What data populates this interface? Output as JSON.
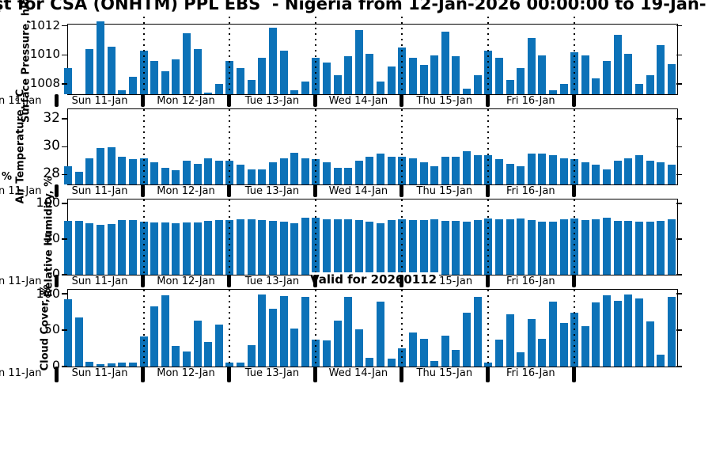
{
  "title": {
    "text": "şt for CSA (ONHTM) PPL EBS  - Nigeria from 12-Jan-2026 00:00:00 to 19-Jan-"
  },
  "valid_label": "Valid for 20260112",
  "stray_percent_glyph": "%",
  "colors": {
    "bar": "#0c72b8",
    "axis": "#000000",
    "background": "#ffffff",
    "text": "#000000"
  },
  "x_axis": {
    "day_labels": [
      "Sun 11-Jan",
      "Mon 12-Jan",
      "Tue 13-Jan",
      "Wed 14-Jan",
      "Thu 15-Jan",
      "Fri 16-Jan"
    ],
    "clipped_left_label": "Sun 11-Jan",
    "x_start": "Sun 11-Jan 03:00",
    "x_step_hours": 3
  },
  "chart_data": [
    {
      "type": "bar",
      "name": "surface-pressure",
      "ylabel": "Surface Pressure, hPa",
      "yticks": [
        1008,
        1010,
        1012
      ],
      "ylim": [
        1007.3,
        1012.1
      ],
      "legend_position": "none",
      "grid": "vertical-dotted-day-boundaries",
      "values": [
        1009.1,
        1007.3,
        1010.4,
        1012.3,
        1010.6,
        1007.6,
        1008.5,
        1010.3,
        1009.6,
        1008.9,
        1009.7,
        1011.5,
        1010.4,
        1007.4,
        1008.0,
        1009.6,
        1009.1,
        1008.3,
        1009.8,
        1011.9,
        1010.3,
        1007.6,
        1008.2,
        1009.8,
        1009.5,
        1008.6,
        1009.9,
        1011.7,
        1010.1,
        1008.2,
        1009.2,
        1010.5,
        1009.8,
        1009.3,
        1010.0,
        1011.6,
        1009.9,
        1007.7,
        1008.6,
        1010.3,
        1009.8,
        1008.3,
        1009.1,
        1011.2,
        1010.0,
        1007.6,
        1008.0,
        1010.2,
        1010.0,
        1008.4,
        1009.6,
        1011.4,
        1010.1,
        1008.0,
        1008.6,
        1010.7,
        1009.4
      ]
    },
    {
      "type": "bar",
      "name": "air-temperature",
      "ylabel": "Air Temperature, °C",
      "yticks": [
        28,
        30,
        32
      ],
      "ylim": [
        27.3,
        32.7
      ],
      "legend_position": "none",
      "grid": "vertical-dotted-day-boundaries",
      "values": [
        28.6,
        28.2,
        29.2,
        29.9,
        30.0,
        29.3,
        29.1,
        29.2,
        28.9,
        28.5,
        28.3,
        29.0,
        28.8,
        29.2,
        29.0,
        29.0,
        28.7,
        28.4,
        28.4,
        28.9,
        29.2,
        29.6,
        29.2,
        29.1,
        28.9,
        28.5,
        28.5,
        29.0,
        29.3,
        29.5,
        29.3,
        29.3,
        29.2,
        28.9,
        28.6,
        29.3,
        29.3,
        29.7,
        29.4,
        29.4,
        29.1,
        28.8,
        28.6,
        29.5,
        29.5,
        29.4,
        29.2,
        29.1,
        28.9,
        28.7,
        28.4,
        29.0,
        29.2,
        29.4,
        29.0,
        28.9,
        28.7
      ]
    },
    {
      "type": "bar",
      "name": "relative-humidity",
      "ylabel": "Relative Humidity, %",
      "yticks": [
        0,
        50,
        100
      ],
      "ylim": [
        0,
        106
      ],
      "legend_position": "none",
      "grid": "vertical-dotted-day-boundaries",
      "values": [
        76,
        76,
        72,
        70,
        71,
        77,
        77,
        75,
        74,
        74,
        72,
        74,
        74,
        76,
        77,
        77,
        78,
        78,
        77,
        76,
        75,
        73,
        80,
        80,
        78,
        78,
        78,
        77,
        75,
        73,
        77,
        78,
        77,
        77,
        78,
        76,
        76,
        75,
        77,
        79,
        78,
        78,
        79,
        77,
        75,
        75,
        78,
        79,
        77,
        78,
        80,
        76,
        76,
        75,
        75,
        76,
        78
      ]
    },
    {
      "type": "bar",
      "name": "cloud-cover",
      "ylabel": "Cloud Cover, %",
      "yticks": [
        0,
        50,
        100
      ],
      "ylim": [
        0,
        106
      ],
      "legend_position": "none",
      "grid": "vertical-dotted-day-boundaries",
      "values": [
        93,
        68,
        7,
        3,
        4,
        5,
        6,
        42,
        83,
        98,
        28,
        21,
        63,
        34,
        58,
        5,
        5,
        29,
        100,
        80,
        97,
        53,
        96,
        37,
        36,
        63,
        96,
        51,
        12,
        90,
        11,
        25,
        47,
        38,
        8,
        43,
        23,
        74,
        96,
        6,
        37,
        72,
        20,
        66,
        38,
        90,
        60,
        74,
        56,
        88,
        98,
        91,
        99,
        94,
        62,
        16,
        96
      ]
    }
  ]
}
